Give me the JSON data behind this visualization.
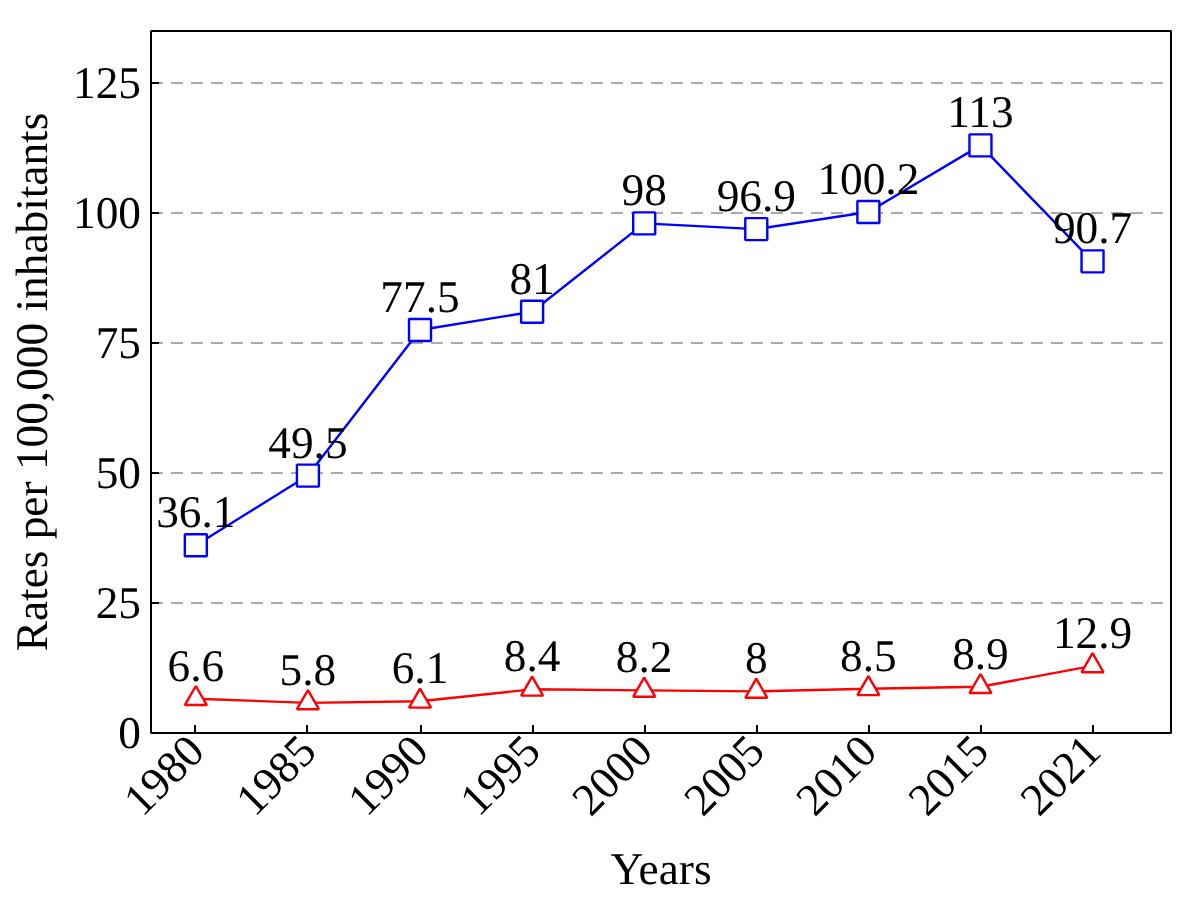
{
  "chart_data": {
    "type": "line",
    "xlabel": "Years",
    "ylabel": "Rates per 100,000 inhabitants",
    "categories": [
      "1980",
      "1985",
      "1990",
      "1995",
      "2000",
      "2005",
      "2010",
      "2015",
      "2021"
    ],
    "series": [
      {
        "color": "#0000ff",
        "marker": "square",
        "values": [
          36.1,
          49.5,
          77.5,
          81,
          98,
          96.9,
          100.2,
          113,
          90.7
        ]
      },
      {
        "color": "#ff0000",
        "marker": "triangle",
        "values": [
          6.6,
          5.8,
          6.1,
          8.4,
          8.2,
          8,
          8.5,
          8.9,
          12.9
        ]
      }
    ],
    "ylim": [
      0,
      135
    ],
    "yticks": [
      0,
      25,
      50,
      75,
      100,
      125
    ],
    "grid": "y",
    "data_labels": true,
    "line_style": "solid"
  }
}
